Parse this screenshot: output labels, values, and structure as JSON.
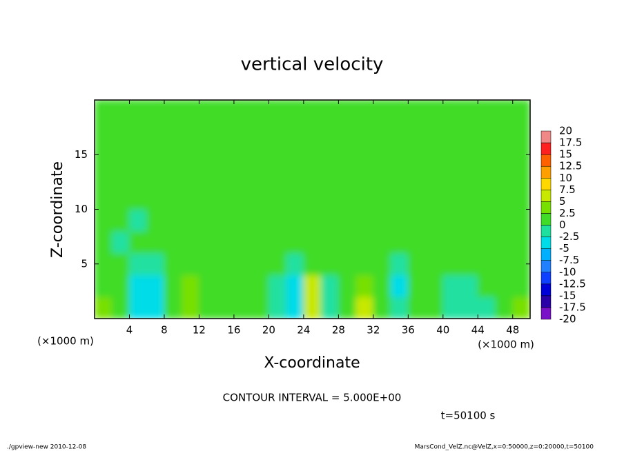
{
  "chart_data": {
    "type": "heatmap",
    "title": "vertical velocity",
    "x_label": "X-coordinate",
    "y_label": "Z-coordinate",
    "x_unit": "(×1000 m)",
    "xlim": [
      0,
      50
    ],
    "ylim": [
      0,
      20
    ],
    "xticks": [
      4,
      8,
      12,
      16,
      20,
      24,
      28,
      32,
      36,
      40,
      44,
      48
    ],
    "yticks": [
      5,
      10,
      15
    ],
    "x": [
      1,
      3,
      5,
      7,
      9,
      11,
      13,
      15,
      17,
      19,
      21,
      23,
      25,
      27,
      29,
      31,
      33,
      35,
      37,
      39,
      41,
      43,
      45,
      47,
      49
    ],
    "y": [
      1,
      3,
      5,
      7,
      9,
      11,
      13,
      15,
      17,
      19
    ],
    "z": [
      [
        3,
        2,
        -5,
        -3,
        1,
        3,
        2,
        1,
        0,
        1,
        -2,
        -4,
        6,
        -2,
        2,
        5,
        1,
        -1,
        1,
        1,
        -1,
        -2,
        -1,
        2,
        3
      ],
      [
        2,
        1,
        -3,
        -4,
        1,
        3,
        2,
        1,
        0,
        1,
        -1,
        -4,
        7,
        -2,
        2,
        4,
        1,
        -4,
        1,
        0,
        -1,
        -1,
        0,
        1,
        2
      ],
      [
        1,
        0,
        -1,
        -1,
        0,
        1,
        1,
        0,
        0,
        0,
        0,
        -1,
        2,
        0,
        1,
        1,
        0,
        -1,
        0,
        0,
        0,
        0,
        0,
        0,
        1
      ],
      [
        0,
        -1,
        0,
        0,
        0,
        0,
        0,
        0,
        0,
        0,
        0,
        0,
        1,
        0,
        0,
        0,
        0,
        0,
        0,
        0,
        0,
        0,
        0,
        0,
        0
      ],
      [
        0,
        0,
        -1,
        0,
        0,
        0,
        0,
        0,
        0,
        0,
        0,
        0,
        0,
        0,
        0,
        0,
        0,
        0,
        0,
        0,
        0,
        0,
        0,
        0,
        0
      ],
      [
        0,
        0,
        0,
        0,
        0,
        0,
        0,
        0,
        0,
        0,
        0,
        0,
        0,
        0,
        0,
        0,
        0,
        0,
        0,
        0,
        0,
        0,
        0,
        0,
        0
      ],
      [
        0,
        0,
        0,
        0,
        0,
        0,
        0,
        0,
        0,
        0,
        0,
        0,
        0,
        0,
        0,
        0,
        0,
        0,
        0,
        0,
        0,
        0,
        0,
        0,
        0
      ],
      [
        0,
        0,
        0,
        0,
        0,
        0,
        0,
        0,
        0,
        0,
        0,
        0,
        0,
        0,
        0,
        0,
        0,
        0,
        0,
        0,
        0,
        0,
        0,
        0,
        0
      ],
      [
        0,
        0,
        0,
        0,
        0,
        0,
        0,
        0,
        0,
        0,
        0,
        0,
        0,
        0,
        0,
        0,
        0,
        0,
        0,
        0,
        0,
        0,
        0,
        0,
        0
      ],
      [
        0,
        0,
        0,
        0,
        0,
        0,
        0,
        0,
        0,
        0,
        0,
        0,
        0,
        0,
        0,
        0,
        0,
        0,
        0,
        0,
        0,
        0,
        0,
        0,
        0
      ]
    ],
    "colorbar": {
      "levels": [
        -20,
        -17.5,
        -15,
        -12.5,
        -10,
        -7.5,
        -5,
        -2.5,
        0,
        2.5,
        5,
        7.5,
        10,
        12.5,
        15,
        17.5,
        20
      ],
      "colors": [
        "#7a10c8",
        "#2a00a8",
        "#0000d8",
        "#1040ff",
        "#2080ff",
        "#00b0ff",
        "#00dce8",
        "#20e0a0",
        "#40dc28",
        "#78e000",
        "#c8e800",
        "#ffd800",
        "#ffa000",
        "#ff6000",
        "#ff2020",
        "#f08888"
      ]
    },
    "contour_interval": "CONTOUR INTERVAL = 5.000E+00",
    "time_label": "t=50100 s",
    "footer_left": "./gpview-new  2010-12-08",
    "footer_right": "MarsCond_VelZ.nc@VelZ,x=0:50000,z=0:20000,t=50100"
  }
}
